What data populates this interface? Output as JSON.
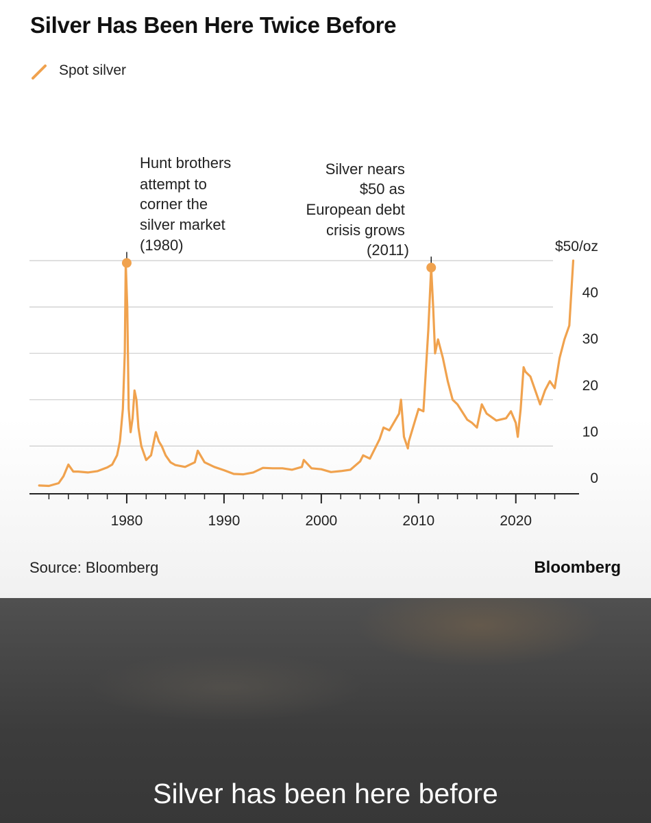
{
  "colors": {
    "series": "#f0a24e",
    "grid": "#cccccc",
    "axis": "#222222",
    "caption_bg": "#444444"
  },
  "legend_icon": "diagonal-line-icon",
  "chart_data": {
    "type": "line",
    "title": "Silver Has Been Here Twice Before",
    "xlabel": "",
    "ylabel": "",
    "ylim": [
      0,
      50
    ],
    "xlim": [
      1970,
      2026.5
    ],
    "y_ticks": [
      {
        "value": 0,
        "label": "0"
      },
      {
        "value": 10,
        "label": "10"
      },
      {
        "value": 20,
        "label": "20"
      },
      {
        "value": 30,
        "label": "30"
      },
      {
        "value": 40,
        "label": "40"
      },
      {
        "value": 50,
        "label": "$50/oz"
      }
    ],
    "x_ticks": [
      {
        "value": 1980,
        "label": "1980"
      },
      {
        "value": 1990,
        "label": "1990"
      },
      {
        "value": 2000,
        "label": "2000"
      },
      {
        "value": 2010,
        "label": "2010"
      },
      {
        "value": 2020,
        "label": "2020"
      }
    ],
    "series": [
      {
        "name": "Spot silver",
        "x": [
          1971,
          1972,
          1973,
          1973.5,
          1974,
          1974.5,
          1975,
          1976,
          1977,
          1978,
          1978.5,
          1979,
          1979.3,
          1979.6,
          1979.8,
          1979.9,
          1980.05,
          1980.2,
          1980.4,
          1980.6,
          1980.8,
          1981,
          1981.2,
          1981.5,
          1982,
          1982.5,
          1983,
          1983.3,
          1983.6,
          1984,
          1984.5,
          1985,
          1986,
          1987,
          1987.3,
          1988,
          1989,
          1990,
          1991,
          1992,
          1993,
          1994,
          1995,
          1996,
          1997,
          1998,
          1998.2,
          1999,
          2000,
          2001,
          2002,
          2003,
          2004,
          2004.3,
          2005,
          2006,
          2006.4,
          2007,
          2008,
          2008.2,
          2008.5,
          2008.9,
          2009,
          2010,
          2010.5,
          2011,
          2011.3,
          2011.5,
          2011.7,
          2012,
          2012.5,
          2013,
          2013.5,
          2014,
          2015,
          2015.5,
          2016,
          2016.5,
          2017,
          2018,
          2019,
          2019.5,
          2020,
          2020.2,
          2020.5,
          2020.8,
          2021,
          2021.5,
          2022,
          2022.5,
          2023,
          2023.5,
          2024,
          2024.5,
          2025,
          2025.5,
          2025.9
        ],
        "values": [
          1.5,
          1.4,
          2.0,
          3.5,
          6.0,
          4.5,
          4.5,
          4.3,
          4.6,
          5.4,
          6.0,
          8.0,
          11.0,
          18.0,
          30.0,
          49.5,
          40.0,
          18.0,
          13.0,
          16.0,
          22.0,
          20.0,
          14.0,
          10.0,
          7.0,
          8.0,
          13.0,
          11.0,
          10.0,
          8.0,
          6.5,
          5.9,
          5.5,
          6.5,
          9.0,
          6.5,
          5.5,
          4.8,
          4.0,
          3.9,
          4.3,
          5.3,
          5.2,
          5.2,
          4.9,
          5.5,
          7.0,
          5.2,
          5.0,
          4.4,
          4.6,
          4.9,
          6.7,
          8.0,
          7.3,
          11.5,
          14.0,
          13.4,
          17.0,
          20.0,
          12.0,
          9.5,
          11.0,
          18.0,
          17.5,
          35.0,
          48.5,
          40.0,
          30.0,
          33.0,
          29.0,
          24.0,
          20.0,
          19.0,
          15.7,
          15.0,
          14.0,
          19.0,
          17.0,
          15.5,
          16.0,
          17.5,
          15.0,
          12.0,
          18.0,
          27.0,
          26.0,
          25.0,
          22.0,
          19.0,
          22.0,
          24.0,
          22.5,
          29.0,
          33.0,
          36.0,
          50.0
        ]
      }
    ],
    "annotations": [
      {
        "x": 1980,
        "y": 49.5,
        "text": "Hunt brothers attempt to corner the silver market (1980)"
      },
      {
        "x": 2011.3,
        "y": 48.5,
        "text": "Silver nears $50 as European debt crisis grows (2011)"
      }
    ],
    "legend_position": "top-left"
  },
  "annotations_text": {
    "hunt": [
      "Hunt brothers",
      "attempt to",
      "corner the",
      "silver market",
      "(1980)"
    ],
    "crisis": [
      "Silver nears",
      "$50 as",
      "European debt",
      "crisis grows",
      "(2011)"
    ]
  },
  "footer": {
    "source": "Source: Bloomberg",
    "brand": "Bloomberg"
  },
  "caption": "Silver has been here before"
}
